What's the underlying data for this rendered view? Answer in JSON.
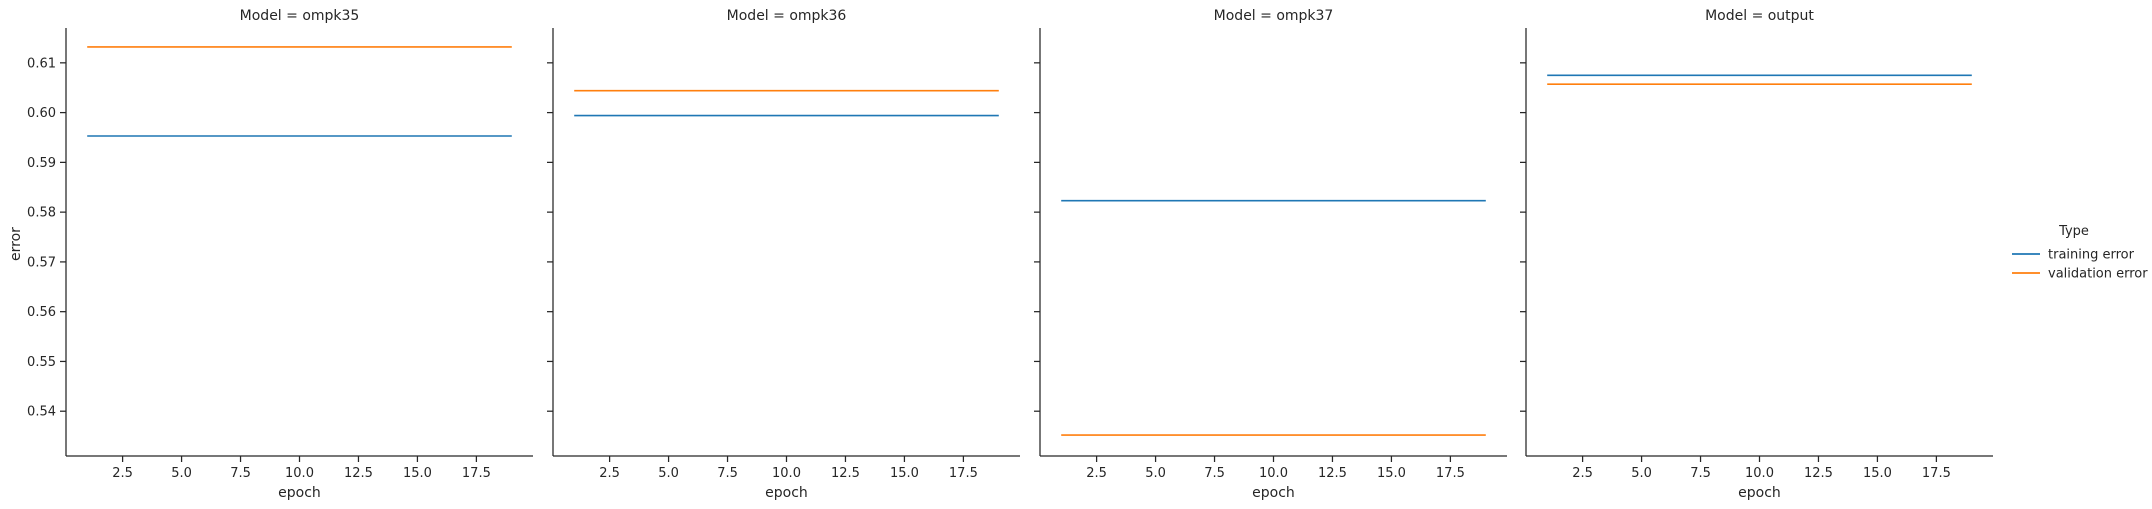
{
  "chart_data": {
    "type": "line",
    "ylabel": "error",
    "ylim": [
      0.531,
      0.617
    ],
    "yticks": [
      0.54,
      0.55,
      0.56,
      0.57,
      0.58,
      0.59,
      0.6,
      0.61
    ],
    "ytick_labels": [
      "0.54",
      "0.55",
      "0.56",
      "0.57",
      "0.58",
      "0.59",
      "0.60",
      "0.61"
    ],
    "xlim": [
      0.1,
      19.9
    ],
    "xticks": [
      2.5,
      5.0,
      7.5,
      10.0,
      12.5,
      15.0,
      17.5
    ],
    "xtick_labels": [
      "2.5",
      "5.0",
      "7.5",
      "10.0",
      "12.5",
      "15.0",
      "17.5"
    ],
    "xlabel": "epoch",
    "x": [
      1,
      19
    ],
    "legend": {
      "title": "Type",
      "placement": "right",
      "entries": [
        {
          "name": "training error",
          "color": "#1f77b4"
        },
        {
          "name": "validation error",
          "color": "#ff7f0e"
        }
      ]
    },
    "panels": [
      {
        "title": "Model = ompk35",
        "series": [
          {
            "name": "training error",
            "values": [
              0.5953,
              0.5953
            ]
          },
          {
            "name": "validation error",
            "values": [
              0.6132,
              0.6132
            ]
          }
        ]
      },
      {
        "title": "Model = ompk36",
        "series": [
          {
            "name": "training error",
            "values": [
              0.5994,
              0.5994
            ]
          },
          {
            "name": "validation error",
            "values": [
              0.6044,
              0.6044
            ]
          }
        ]
      },
      {
        "title": "Model = ompk37",
        "series": [
          {
            "name": "training error",
            "values": [
              0.5823,
              0.5823
            ]
          },
          {
            "name": "validation error",
            "values": [
              0.5352,
              0.5352
            ]
          }
        ]
      },
      {
        "title": "Model = output",
        "series": [
          {
            "name": "training error",
            "values": [
              0.6075,
              0.6075
            ]
          },
          {
            "name": "validation error",
            "values": [
              0.6057,
              0.6057
            ]
          }
        ]
      }
    ]
  }
}
